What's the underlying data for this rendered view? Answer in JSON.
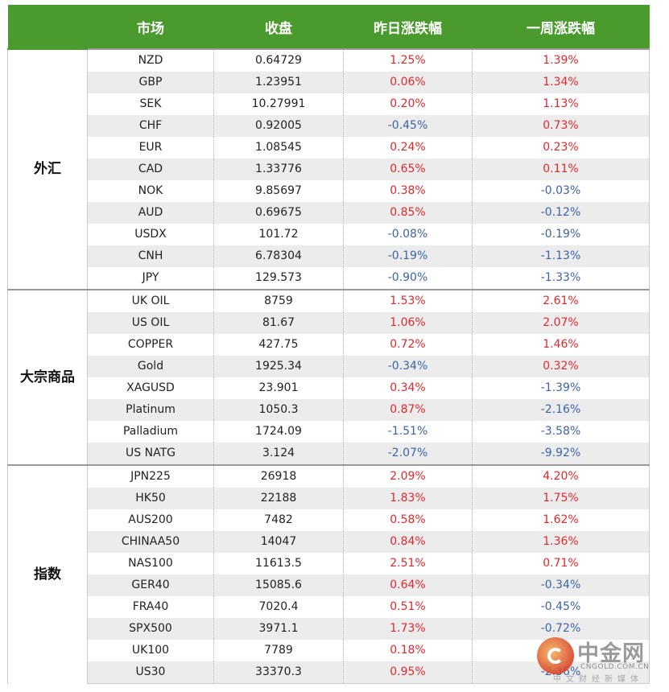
{
  "header": {
    "market": "市场",
    "close": "收盘",
    "day_change": "昨日涨跌幅",
    "week_change": "一周涨跌幅"
  },
  "groups": [
    {
      "name": "外汇",
      "rows": [
        {
          "market": "NZD",
          "close": "0.64729",
          "day": "1.25%",
          "week": "1.39%"
        },
        {
          "market": "GBP",
          "close": "1.23951",
          "day": "0.06%",
          "week": "1.34%"
        },
        {
          "market": "SEK",
          "close": "10.27991",
          "day": "0.20%",
          "week": "1.13%"
        },
        {
          "market": "CHF",
          "close": "0.92005",
          "day": "-0.45%",
          "week": "0.73%"
        },
        {
          "market": "EUR",
          "close": "1.08545",
          "day": "0.24%",
          "week": "0.23%"
        },
        {
          "market": "CAD",
          "close": "1.33776",
          "day": "0.65%",
          "week": "0.11%"
        },
        {
          "market": "NOK",
          "close": "9.85697",
          "day": "0.38%",
          "week": "-0.03%"
        },
        {
          "market": "AUD",
          "close": "0.69675",
          "day": "0.85%",
          "week": "-0.12%"
        },
        {
          "market": "USDX",
          "close": "101.72",
          "day": "-0.08%",
          "week": "-0.19%"
        },
        {
          "market": "CNH",
          "close": "6.78304",
          "day": "-0.19%",
          "week": "-1.13%"
        },
        {
          "market": "JPY",
          "close": "129.573",
          "day": "-0.90%",
          "week": "-1.33%"
        }
      ]
    },
    {
      "name": "大宗商品",
      "rows": [
        {
          "market": "UK OIL",
          "close": "8759",
          "day": "1.53%",
          "week": "2.61%"
        },
        {
          "market": "US OIL",
          "close": "81.67",
          "day": "1.06%",
          "week": "2.07%"
        },
        {
          "market": "COPPER",
          "close": "427.75",
          "day": "0.72%",
          "week": "1.46%"
        },
        {
          "market": "Gold",
          "close": "1925.34",
          "day": "-0.34%",
          "week": "0.32%"
        },
        {
          "market": "XAGUSD",
          "close": "23.901",
          "day": "0.34%",
          "week": "-1.39%"
        },
        {
          "market": "Platinum",
          "close": "1050.3",
          "day": "0.87%",
          "week": "-2.16%"
        },
        {
          "market": "Palladium",
          "close": "1724.09",
          "day": "-1.51%",
          "week": "-3.58%"
        },
        {
          "market": "US NATG",
          "close": "3.124",
          "day": "-2.07%",
          "week": "-9.92%"
        }
      ]
    },
    {
      "name": "指数",
      "rows": [
        {
          "market": "JPN225",
          "close": "26918",
          "day": "2.09%",
          "week": "4.20%"
        },
        {
          "market": "HK50",
          "close": "22188",
          "day": "1.83%",
          "week": "1.75%"
        },
        {
          "market": "AUS200",
          "close": "7482",
          "day": "0.58%",
          "week": "1.62%"
        },
        {
          "market": "CHINAA50",
          "close": "14047",
          "day": "0.84%",
          "week": "1.36%"
        },
        {
          "market": "NAS100",
          "close": "11613.5",
          "day": "2.51%",
          "week": "0.71%"
        },
        {
          "market": "GER40",
          "close": "15085.6",
          "day": "0.64%",
          "week": "-0.34%"
        },
        {
          "market": "FRA40",
          "close": "7020.4",
          "day": "0.51%",
          "week": "-0.45%"
        },
        {
          "market": "SPX500",
          "close": "3971.1",
          "day": "1.73%",
          "week": "-0.72%"
        },
        {
          "market": "UK100",
          "close": "7789",
          "day": "0.18%",
          "week": "-"
        },
        {
          "market": "US30",
          "close": "33370.3",
          "day": "0.95%",
          "week": "-2.36%"
        }
      ]
    }
  ],
  "colors": {
    "header_bg": "#4a9a2e",
    "positive": "#e0282c",
    "negative": "#3b64a8",
    "stripe": "#ececec"
  },
  "watermark": {
    "title": "中金网",
    "url": "CNGOLD.COM.CN",
    "subtitle": "中文财经新媒体",
    "icon": "cngold-logo-icon"
  }
}
